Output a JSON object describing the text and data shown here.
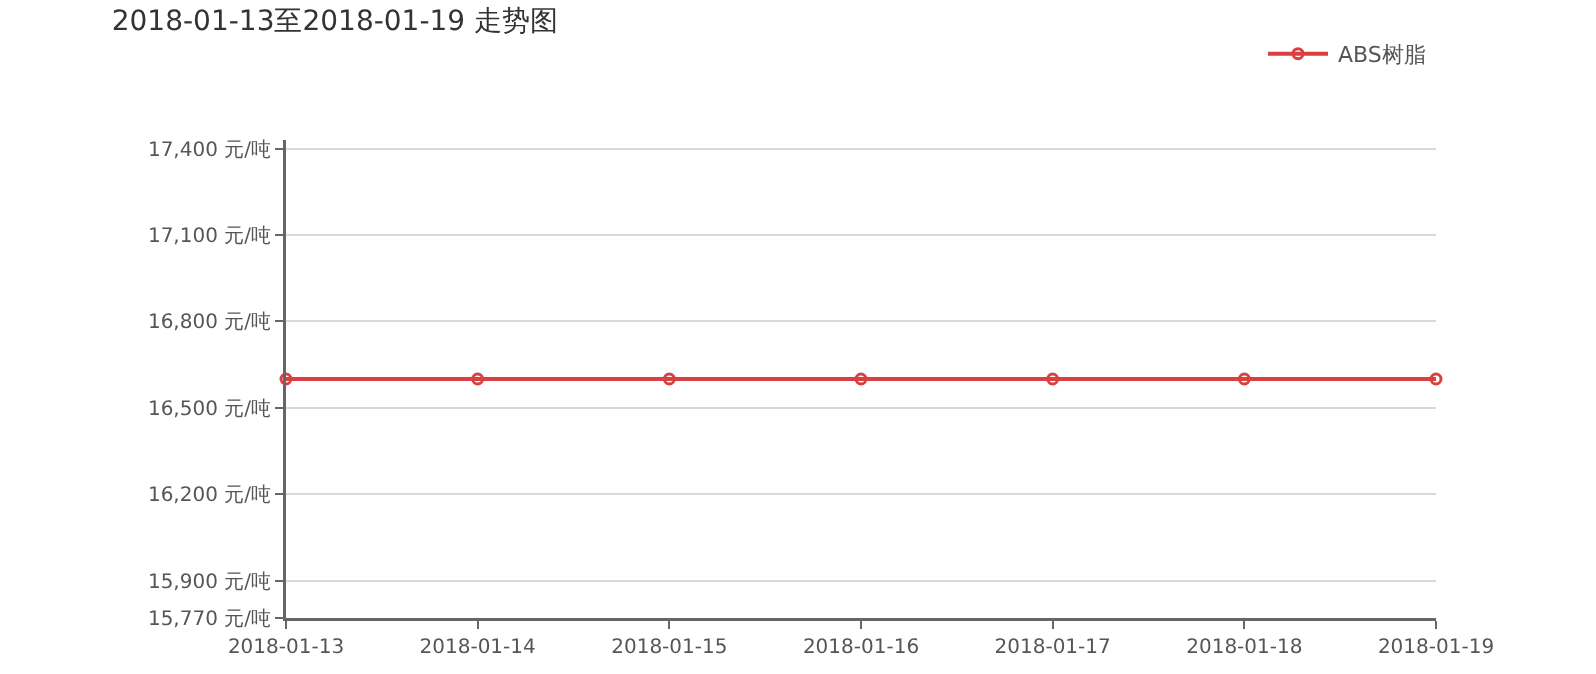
{
  "chart_data": {
    "type": "line",
    "title": "2018-01-13至2018-01-19 走势图",
    "categories": [
      "2018-01-13",
      "2018-01-14",
      "2018-01-15",
      "2018-01-16",
      "2018-01-17",
      "2018-01-18",
      "2018-01-19"
    ],
    "series": [
      {
        "name": "ABS树脂",
        "color": "#d9403f",
        "values": [
          16600,
          16600,
          16600,
          16600,
          16600,
          16600,
          16600
        ]
      }
    ],
    "ylim": [
      15770,
      17430
    ],
    "yticks": [
      {
        "value": 15770,
        "label": "15,770 元/吨"
      },
      {
        "value": 15900,
        "label": "15,900 元/吨"
      },
      {
        "value": 16200,
        "label": "16,200 元/吨"
      },
      {
        "value": 16500,
        "label": "16,500 元/吨"
      },
      {
        "value": 16800,
        "label": "16,800 元/吨"
      },
      {
        "value": 17100,
        "label": "17,100 元/吨"
      },
      {
        "value": 17400,
        "label": "17,400 元/吨"
      }
    ],
    "grid": "y",
    "legend": "top right",
    "marker": "circle",
    "line_style": "solid"
  }
}
